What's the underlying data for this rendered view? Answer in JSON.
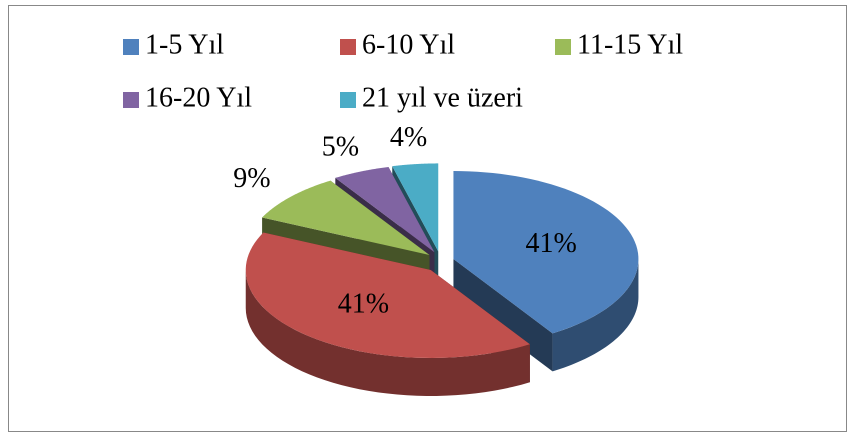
{
  "chart_data": {
    "type": "pie3d",
    "categories": [
      "1-5 Yıl",
      "6-10 Yıl",
      "11-15 Yıl",
      "16-20 Yıl",
      "21 yıl ve üzeri"
    ],
    "values": [
      41,
      41,
      9,
      5,
      4
    ],
    "value_labels": [
      "41%",
      "41%",
      "9%",
      "5%",
      "4%"
    ],
    "colors": [
      "#4f81bd",
      "#c0504d",
      "#9bbb59",
      "#8064a2",
      "#4bacc6"
    ],
    "legend": "top"
  }
}
